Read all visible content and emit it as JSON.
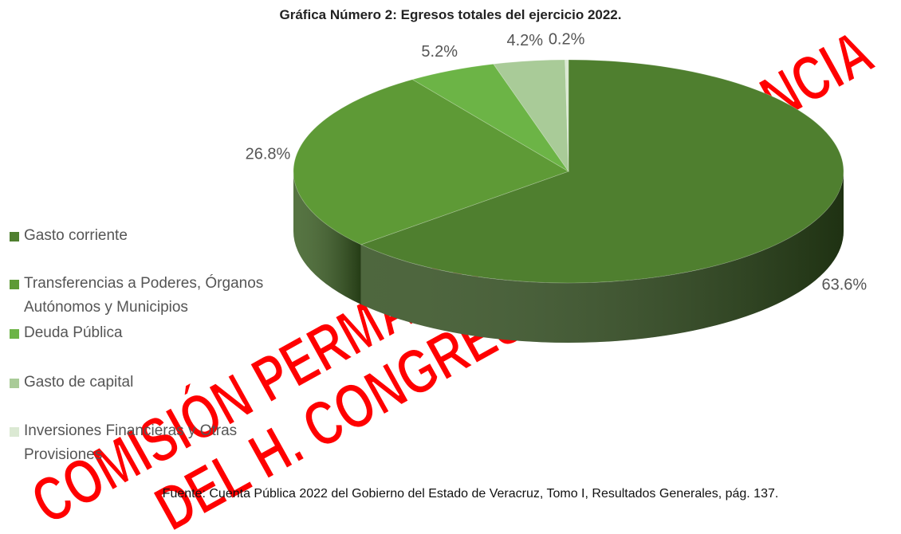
{
  "chart_data": {
    "type": "pie3d",
    "title": "Gráfica Número 2: Egresos totales del ejercicio 2022.",
    "categories": [
      "Gasto corriente",
      "Transferencias a Poderes, Órganos Autónomos y Municipios",
      "Deuda Pública",
      "Gasto de capital",
      "Inversiones Financieras y Otras Provisiones"
    ],
    "values": [
      63.6,
      26.8,
      5.2,
      4.2,
      0.2
    ],
    "value_labels": [
      "63.6%",
      "26.8%",
      "5.2%",
      "4.2%",
      "0.2%"
    ],
    "colors": [
      "#4f7f2f",
      "#5e9a36",
      "#6cb446",
      "#a9cb98",
      "#dbe9d3"
    ],
    "legend": "left",
    "source": "Fuente: Cuenta Pública 2022 del Gobierno del Estado de Veracruz, Tomo I, Resultados Generales, pág. 137.",
    "watermark": [
      "COMISIÓN PERMANENTE DE VIGILANCIA",
      "DEL H. CONGRESO"
    ]
  }
}
